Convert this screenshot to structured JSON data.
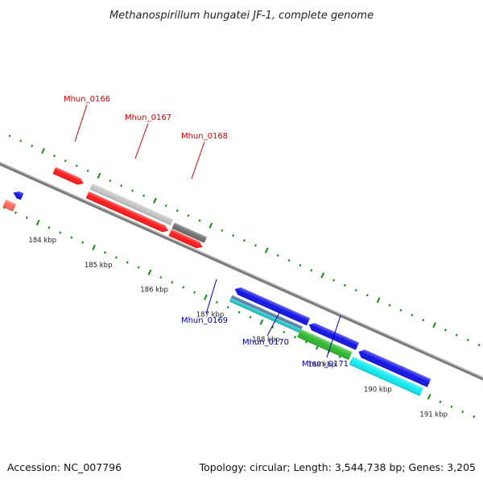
{
  "title": "Methanospirillum hungatei JF-1, complete genome",
  "footer": {
    "accession": "Accession: NC_007796",
    "stats": "Topology: circular; Length: 3,544,738 bp; Genes: 3,205"
  },
  "scale_labels": [
    "184 kbp",
    "185 kbp",
    "186 kbp",
    "187 kbp",
    "188 kbp",
    "189 kbp",
    "190 kbp",
    "191 kbp"
  ],
  "gene_labels": {
    "forward": [
      "Mhun_0166",
      "Mhun_0167",
      "Mhun_0168"
    ],
    "reverse": [
      "Mhun_0169",
      "Mhun_0170",
      "Mhun_0171"
    ]
  },
  "colors": {
    "forward_label": "#d40000",
    "reverse_label": "#0000b4",
    "backbone": "#7a7a7a",
    "ticks": "#138a13",
    "red": "#ff1a1a",
    "salmon": "#ff6a5a",
    "light_gray": "#c4c4c4",
    "dark_gray": "#6e6e6e",
    "blue": "#1414e6",
    "steel_blue": "#5a7fa6",
    "teal": "#22c4c8",
    "green": "#2eb82e",
    "cyan": "#10eaf0"
  }
}
